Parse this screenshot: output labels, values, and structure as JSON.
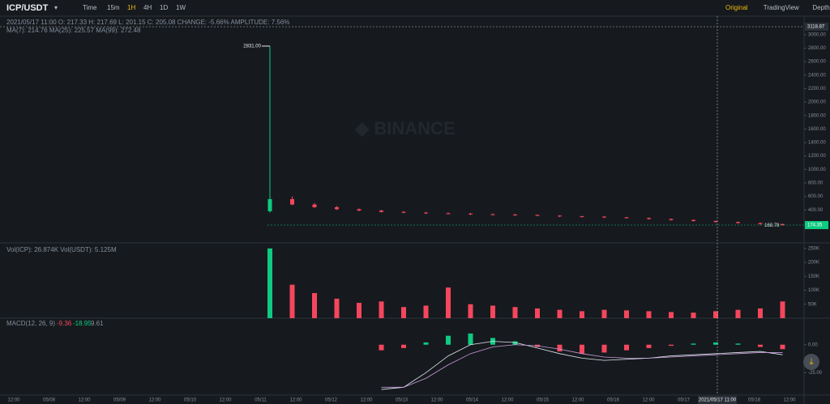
{
  "toolbar": {
    "pair": "ICP/USDT",
    "intervals": [
      "Time",
      "15m",
      "1H",
      "4H",
      "1D",
      "1W"
    ],
    "views": [
      "Original",
      "TradingView",
      "Depth"
    ]
  },
  "legend": {
    "ohlc": "2021/05/17 11:00 O: 217.33 H: 217.69 L: 201.15 C: 205.08 CHANGE: -5.66% AMPLITUDE: 7.56%",
    "ma": "MA(7): 214.76 MA(25): 225.57 MA(99): 272.48",
    "vol": "Vol(ICP): 26.874K Vol(USDT): 5.125M",
    "macd": "MACD(12, 26, 9)",
    "macd_values": [
      "-9.36",
      "-18.95",
      "9.61"
    ]
  },
  "chart_data": {
    "type": "candlestick",
    "open": [
      380,
      560,
      480,
      440,
      410,
      390,
      370,
      360,
      350,
      345,
      335,
      330,
      325,
      315,
      305,
      300,
      290,
      280,
      265,
      250,
      235,
      220,
      205,
      190
    ],
    "high": [
      2831,
      600,
      500,
      455,
      420,
      400,
      380,
      370,
      360,
      355,
      345,
      340,
      330,
      320,
      312,
      305,
      295,
      285,
      270,
      255,
      240,
      225,
      210,
      195
    ],
    "low": [
      360,
      470,
      430,
      400,
      380,
      360,
      350,
      340,
      335,
      325,
      320,
      315,
      305,
      295,
      290,
      280,
      270,
      255,
      240,
      225,
      210,
      195,
      180,
      168.78
    ],
    "close": [
      560,
      480,
      440,
      410,
      390,
      370,
      360,
      350,
      345,
      335,
      330,
      325,
      315,
      305,
      300,
      290,
      280,
      265,
      250,
      235,
      220,
      205,
      190,
      174
    ],
    "ylim": [
      -90,
      3275
    ],
    "yticks": [
      {
        "value": 200,
        "label": "200.00"
      },
      {
        "value": 400,
        "label": "400.00"
      },
      {
        "value": 600,
        "label": "600.00"
      },
      {
        "value": 800,
        "label": "800.00"
      },
      {
        "value": 1000,
        "label": "1000.00"
      },
      {
        "value": 1200,
        "label": "1200.00"
      },
      {
        "value": 1400,
        "label": "1400.00"
      },
      {
        "value": 1600,
        "label": "1600.00"
      },
      {
        "value": 1800,
        "label": "1800.00"
      },
      {
        "value": 2000,
        "label": "2000.00"
      },
      {
        "value": 2200,
        "label": "2200.00"
      },
      {
        "value": 2400,
        "label": "2400.00"
      },
      {
        "value": 2600,
        "label": "2600.00"
      },
      {
        "value": 2800,
        "label": "2800.00"
      },
      {
        "value": 3000,
        "label": "3000.00"
      }
    ],
    "high_mark": {
      "value": 2831,
      "label": "2831.00"
    },
    "low_mark": 168.78,
    "last_price": 174.35,
    "crosshair_price": 3118.87,
    "crosshair_time": "2021/05/17 11:00",
    "volume": [
      250,
      120,
      90,
      70,
      55,
      60,
      40,
      45,
      110,
      50,
      45,
      40,
      35,
      30,
      25,
      30,
      28,
      25,
      22,
      20,
      25,
      30,
      35,
      60
    ],
    "vol_ylim": [
      0,
      270
    ],
    "vol_ticks": [
      {
        "value": 50,
        "label": "50K"
      },
      {
        "value": 100,
        "label": "100K"
      },
      {
        "value": 150,
        "label": "150K"
      },
      {
        "value": 200,
        "label": "200K"
      },
      {
        "value": 250,
        "label": "250K"
      }
    ],
    "macd_hist": [
      null,
      null,
      null,
      null,
      null,
      -5,
      -3,
      2,
      8,
      10,
      6,
      3,
      -2,
      -6,
      -8,
      -7,
      -5,
      -3,
      -1,
      1,
      2,
      1,
      -2,
      -4
    ],
    "dif": [
      null,
      null,
      null,
      null,
      null,
      -40,
      -38,
      -25,
      -10,
      0,
      3,
      2,
      -3,
      -8,
      -12,
      -14,
      -13,
      -12,
      -10,
      -9,
      -8,
      -7,
      -6,
      -9
    ],
    "dea": [
      null,
      null,
      null,
      null,
      null,
      -38,
      -38,
      -30,
      -18,
      -8,
      -2,
      0,
      -1,
      -4,
      -8,
      -11,
      -12,
      -12,
      -11,
      -10,
      -9,
      -8,
      -7,
      -7
    ],
    "macd_ylim": [
      -45,
      15
    ],
    "macd_ticks": [
      {
        "value": 0,
        "label": "0.00"
      },
      {
        "value": -25,
        "label": "-25.00"
      }
    ],
    "time_labels": [
      "12:00",
      "05/08",
      "12:00",
      "05/09",
      "12:00",
      "05/10",
      "12:00",
      "05/11",
      "12:00",
      "05/12",
      "12:00",
      "05/13",
      "12:00",
      "05/14",
      "12:00",
      "05/15",
      "12:00",
      "05/16",
      "12:00",
      "05/17",
      "12:00",
      "05/18",
      "12:00"
    ],
    "up_color": "#0ecb81",
    "down_color": "#f6465d"
  }
}
